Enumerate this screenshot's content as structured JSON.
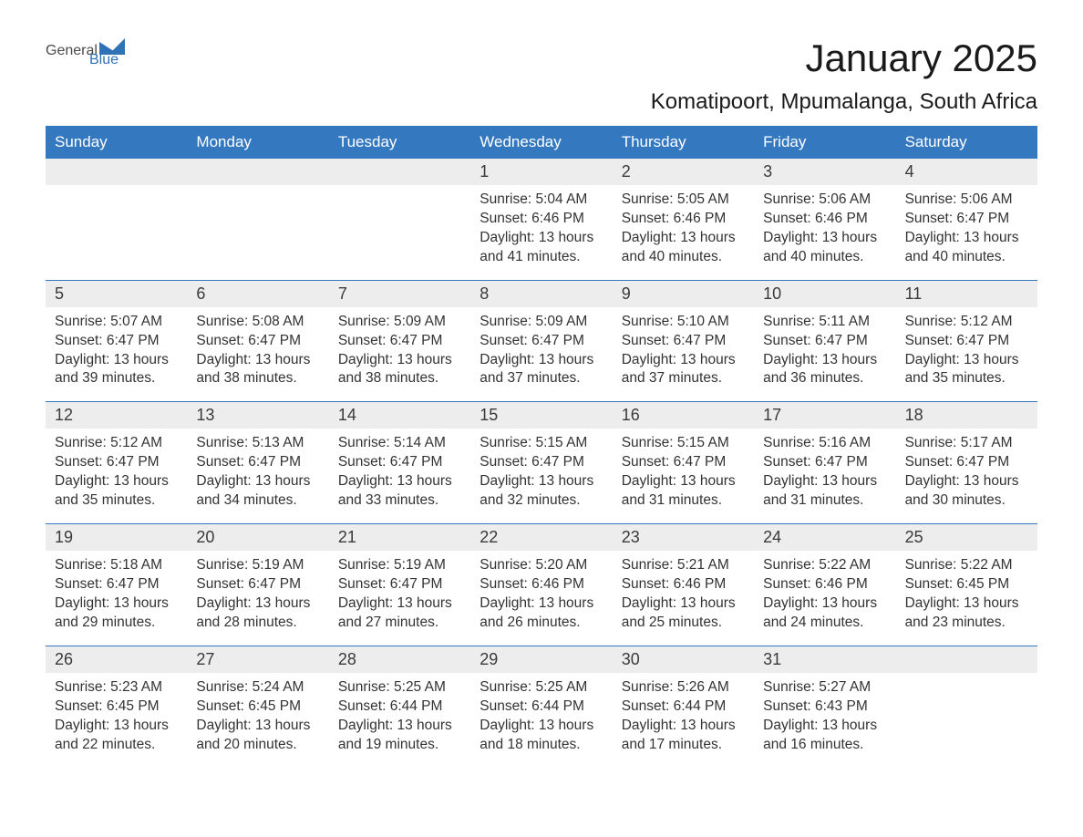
{
  "logo": {
    "part1": "General",
    "part2": "Blue"
  },
  "title": "January 2025",
  "location": "Komatipoort, Mpumalanga, South Africa",
  "styling": {
    "header_bg": "#3478c0",
    "header_text": "#ffffff",
    "daynum_bg": "#ededed",
    "border_color": "#3478c0",
    "body_text": "#333333",
    "title_fontsize": 42,
    "location_fontsize": 24,
    "dayheader_fontsize": 17,
    "daynum_fontsize": 18,
    "content_fontsize": 15.5,
    "columns": 7
  },
  "day_names": [
    "Sunday",
    "Monday",
    "Tuesday",
    "Wednesday",
    "Thursday",
    "Friday",
    "Saturday"
  ],
  "weeks": [
    [
      {
        "empty": true
      },
      {
        "empty": true
      },
      {
        "empty": true
      },
      {
        "day": "1",
        "sunrise": "Sunrise: 5:04 AM",
        "sunset": "Sunset: 6:46 PM",
        "daylight": "Daylight: 13 hours and 41 minutes."
      },
      {
        "day": "2",
        "sunrise": "Sunrise: 5:05 AM",
        "sunset": "Sunset: 6:46 PM",
        "daylight": "Daylight: 13 hours and 40 minutes."
      },
      {
        "day": "3",
        "sunrise": "Sunrise: 5:06 AM",
        "sunset": "Sunset: 6:46 PM",
        "daylight": "Daylight: 13 hours and 40 minutes."
      },
      {
        "day": "4",
        "sunrise": "Sunrise: 5:06 AM",
        "sunset": "Sunset: 6:47 PM",
        "daylight": "Daylight: 13 hours and 40 minutes."
      }
    ],
    [
      {
        "day": "5",
        "sunrise": "Sunrise: 5:07 AM",
        "sunset": "Sunset: 6:47 PM",
        "daylight": "Daylight: 13 hours and 39 minutes."
      },
      {
        "day": "6",
        "sunrise": "Sunrise: 5:08 AM",
        "sunset": "Sunset: 6:47 PM",
        "daylight": "Daylight: 13 hours and 38 minutes."
      },
      {
        "day": "7",
        "sunrise": "Sunrise: 5:09 AM",
        "sunset": "Sunset: 6:47 PM",
        "daylight": "Daylight: 13 hours and 38 minutes."
      },
      {
        "day": "8",
        "sunrise": "Sunrise: 5:09 AM",
        "sunset": "Sunset: 6:47 PM",
        "daylight": "Daylight: 13 hours and 37 minutes."
      },
      {
        "day": "9",
        "sunrise": "Sunrise: 5:10 AM",
        "sunset": "Sunset: 6:47 PM",
        "daylight": "Daylight: 13 hours and 37 minutes."
      },
      {
        "day": "10",
        "sunrise": "Sunrise: 5:11 AM",
        "sunset": "Sunset: 6:47 PM",
        "daylight": "Daylight: 13 hours and 36 minutes."
      },
      {
        "day": "11",
        "sunrise": "Sunrise: 5:12 AM",
        "sunset": "Sunset: 6:47 PM",
        "daylight": "Daylight: 13 hours and 35 minutes."
      }
    ],
    [
      {
        "day": "12",
        "sunrise": "Sunrise: 5:12 AM",
        "sunset": "Sunset: 6:47 PM",
        "daylight": "Daylight: 13 hours and 35 minutes."
      },
      {
        "day": "13",
        "sunrise": "Sunrise: 5:13 AM",
        "sunset": "Sunset: 6:47 PM",
        "daylight": "Daylight: 13 hours and 34 minutes."
      },
      {
        "day": "14",
        "sunrise": "Sunrise: 5:14 AM",
        "sunset": "Sunset: 6:47 PM",
        "daylight": "Daylight: 13 hours and 33 minutes."
      },
      {
        "day": "15",
        "sunrise": "Sunrise: 5:15 AM",
        "sunset": "Sunset: 6:47 PM",
        "daylight": "Daylight: 13 hours and 32 minutes."
      },
      {
        "day": "16",
        "sunrise": "Sunrise: 5:15 AM",
        "sunset": "Sunset: 6:47 PM",
        "daylight": "Daylight: 13 hours and 31 minutes."
      },
      {
        "day": "17",
        "sunrise": "Sunrise: 5:16 AM",
        "sunset": "Sunset: 6:47 PM",
        "daylight": "Daylight: 13 hours and 31 minutes."
      },
      {
        "day": "18",
        "sunrise": "Sunrise: 5:17 AM",
        "sunset": "Sunset: 6:47 PM",
        "daylight": "Daylight: 13 hours and 30 minutes."
      }
    ],
    [
      {
        "day": "19",
        "sunrise": "Sunrise: 5:18 AM",
        "sunset": "Sunset: 6:47 PM",
        "daylight": "Daylight: 13 hours and 29 minutes."
      },
      {
        "day": "20",
        "sunrise": "Sunrise: 5:19 AM",
        "sunset": "Sunset: 6:47 PM",
        "daylight": "Daylight: 13 hours and 28 minutes."
      },
      {
        "day": "21",
        "sunrise": "Sunrise: 5:19 AM",
        "sunset": "Sunset: 6:47 PM",
        "daylight": "Daylight: 13 hours and 27 minutes."
      },
      {
        "day": "22",
        "sunrise": "Sunrise: 5:20 AM",
        "sunset": "Sunset: 6:46 PM",
        "daylight": "Daylight: 13 hours and 26 minutes."
      },
      {
        "day": "23",
        "sunrise": "Sunrise: 5:21 AM",
        "sunset": "Sunset: 6:46 PM",
        "daylight": "Daylight: 13 hours and 25 minutes."
      },
      {
        "day": "24",
        "sunrise": "Sunrise: 5:22 AM",
        "sunset": "Sunset: 6:46 PM",
        "daylight": "Daylight: 13 hours and 24 minutes."
      },
      {
        "day": "25",
        "sunrise": "Sunrise: 5:22 AM",
        "sunset": "Sunset: 6:45 PM",
        "daylight": "Daylight: 13 hours and 23 minutes."
      }
    ],
    [
      {
        "day": "26",
        "sunrise": "Sunrise: 5:23 AM",
        "sunset": "Sunset: 6:45 PM",
        "daylight": "Daylight: 13 hours and 22 minutes."
      },
      {
        "day": "27",
        "sunrise": "Sunrise: 5:24 AM",
        "sunset": "Sunset: 6:45 PM",
        "daylight": "Daylight: 13 hours and 20 minutes."
      },
      {
        "day": "28",
        "sunrise": "Sunrise: 5:25 AM",
        "sunset": "Sunset: 6:44 PM",
        "daylight": "Daylight: 13 hours and 19 minutes."
      },
      {
        "day": "29",
        "sunrise": "Sunrise: 5:25 AM",
        "sunset": "Sunset: 6:44 PM",
        "daylight": "Daylight: 13 hours and 18 minutes."
      },
      {
        "day": "30",
        "sunrise": "Sunrise: 5:26 AM",
        "sunset": "Sunset: 6:44 PM",
        "daylight": "Daylight: 13 hours and 17 minutes."
      },
      {
        "day": "31",
        "sunrise": "Sunrise: 5:27 AM",
        "sunset": "Sunset: 6:43 PM",
        "daylight": "Daylight: 13 hours and 16 minutes."
      },
      {
        "empty": true
      }
    ]
  ]
}
